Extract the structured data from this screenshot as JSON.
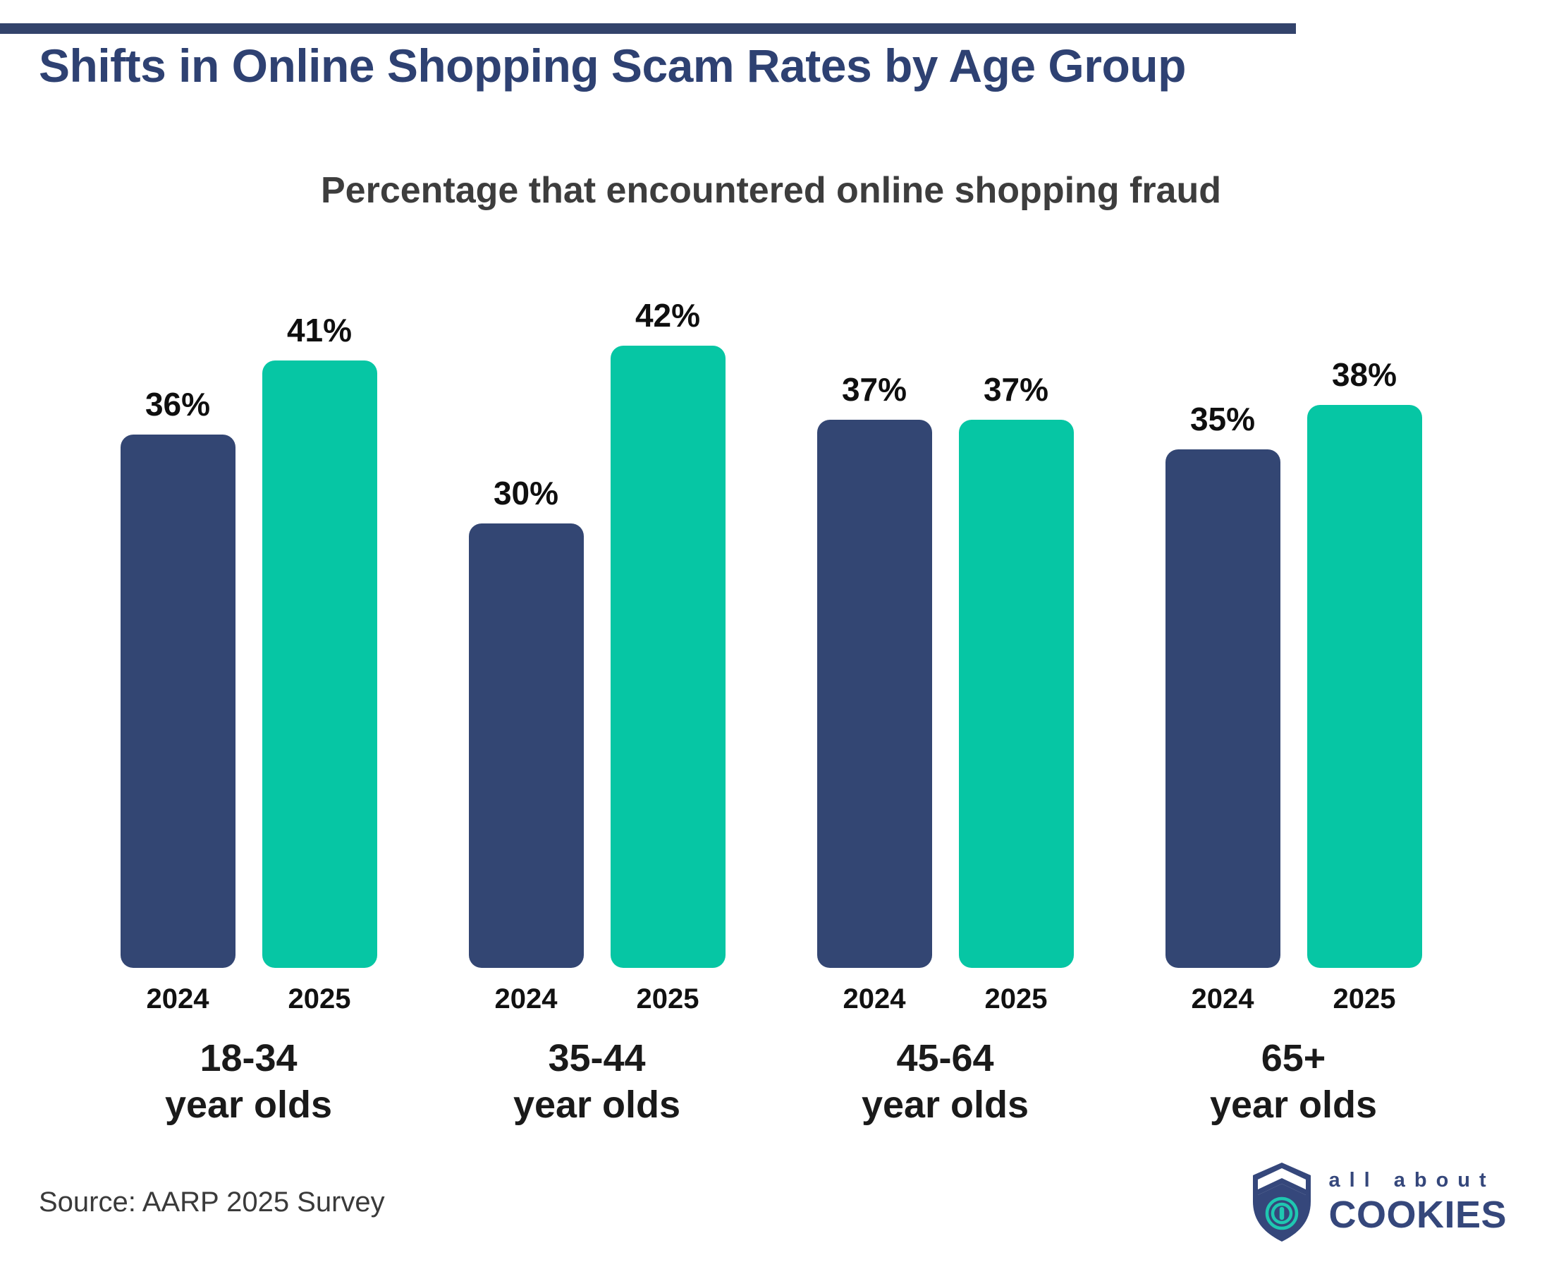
{
  "page": {
    "title": "Shifts in Online Shopping Scam Rates by Age Group",
    "source": "Source: AARP 2025 Survey"
  },
  "logo": {
    "line_small": "all about",
    "line_big": "COOKIES",
    "icon": "shield-fingerprint-icon"
  },
  "colors": {
    "top_accent_bar": "#33436B",
    "title_navy": "#2E4172",
    "bar_2024_navy": "#334673",
    "bar_2025_teal": "#06C6A4",
    "logo_navy": "#35477B",
    "logo_teal": "#1FC7B1",
    "label_black": "#0F0F0F",
    "subtitle_gray": "#3D3D3D"
  },
  "chart_data": {
    "type": "bar",
    "title": "Percentage that encountered online shopping fraud",
    "value_suffix": "%",
    "ylim": [
      0,
      45
    ],
    "grid": false,
    "legend_position": "none",
    "categories": [
      {
        "range": "18-34",
        "qualifier": "year olds"
      },
      {
        "range": "35-44",
        "qualifier": "year olds"
      },
      {
        "range": "45-64",
        "qualifier": "year olds"
      },
      {
        "range": "65+",
        "qualifier": "year olds"
      }
    ],
    "series": [
      {
        "name": "2024",
        "color": "#334673",
        "values": [
          36,
          30,
          37,
          35
        ],
        "labels": [
          "36%",
          "30%",
          "37%",
          "35%"
        ]
      },
      {
        "name": "2025",
        "color": "#06C6A4",
        "values": [
          41,
          42,
          37,
          38
        ],
        "labels": [
          "41%",
          "42%",
          "37%",
          "38%"
        ]
      }
    ]
  }
}
